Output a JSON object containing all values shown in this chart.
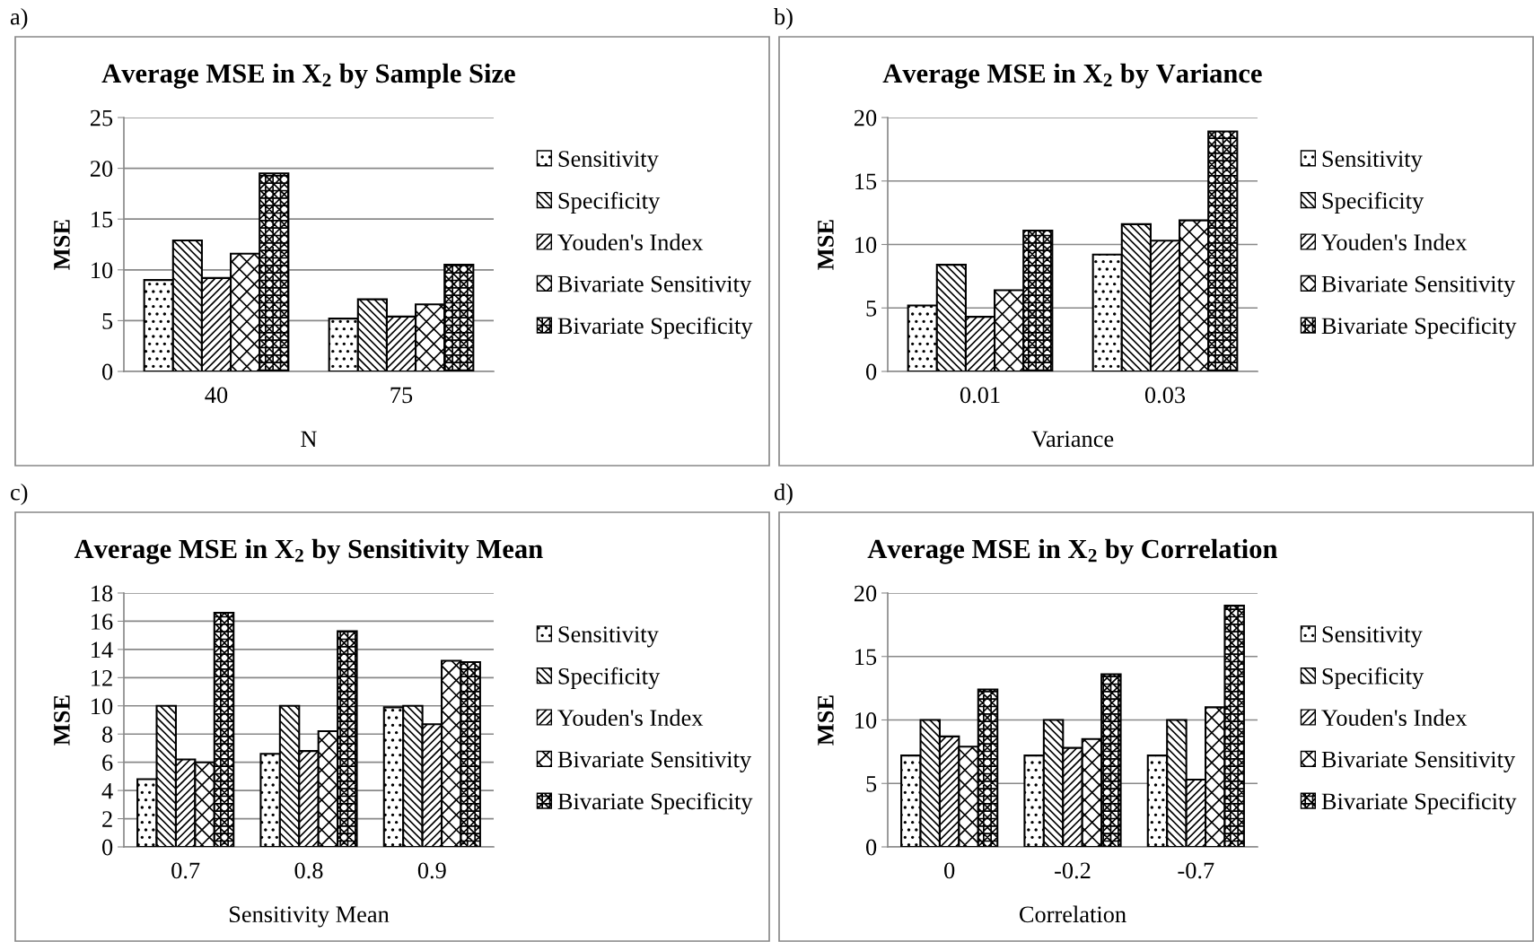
{
  "chart_data": [
    {
      "type": "bar",
      "title": "Average MSE in X$_{2}$ by Sample Size",
      "xlabel": "N",
      "ylabel": "MSE",
      "annotations": [
        "a)"
      ],
      "categories": [
        "40",
        "75"
      ],
      "ylim": [
        0,
        25
      ],
      "yticks": [
        0,
        5,
        10,
        15,
        20,
        25
      ],
      "grid": "y",
      "legend": "right",
      "series": [
        {
          "name": "Sensitivity",
          "color": "#000000",
          "values": [
            9.0,
            5.2
          ]
        },
        {
          "name": "Specificity",
          "color": "#000000",
          "values": [
            12.9,
            7.1
          ]
        },
        {
          "name": "Youden's Index",
          "color": "#000000",
          "values": [
            9.2,
            5.4
          ]
        },
        {
          "name": "Bivariate Sensitivity",
          "color": "#000000",
          "values": [
            11.6,
            6.6
          ]
        },
        {
          "name": "Bivariate Specificity",
          "color": "#000000",
          "values": [
            19.5,
            10.5
          ]
        }
      ]
    },
    {
      "type": "bar",
      "title": "Average MSE in X$_{2}$ by Variance",
      "xlabel": "Variance",
      "ylabel": "MSE",
      "annotations": [
        "b)"
      ],
      "categories": [
        "0.01",
        "0.03"
      ],
      "ylim": [
        0,
        20
      ],
      "yticks": [
        0,
        5,
        10,
        15,
        20
      ],
      "grid": "y",
      "legend": "right",
      "series": [
        {
          "name": "Sensitivity",
          "color": "#000000",
          "values": [
            5.2,
            9.2
          ]
        },
        {
          "name": "Specificity",
          "color": "#000000",
          "values": [
            8.4,
            11.6
          ]
        },
        {
          "name": "Youden's Index",
          "color": "#000000",
          "values": [
            4.3,
            10.3
          ]
        },
        {
          "name": "Bivariate Sensitivity",
          "color": "#000000",
          "values": [
            6.4,
            11.9
          ]
        },
        {
          "name": "Bivariate Specificity",
          "color": "#000000",
          "values": [
            11.1,
            18.9
          ]
        }
      ]
    },
    {
      "type": "bar",
      "title": "Average MSE in X$_{2}$ by Sensitivity Mean",
      "xlabel": "Sensitivity Mean",
      "ylabel": "MSE",
      "annotations": [
        "c)"
      ],
      "categories": [
        "0.7",
        "0.8",
        "0.9"
      ],
      "ylim": [
        0,
        18
      ],
      "yticks": [
        0,
        2,
        4,
        6,
        8,
        10,
        12,
        14,
        16,
        18
      ],
      "grid": "y",
      "legend": "right",
      "series": [
        {
          "name": "Sensitivity",
          "color": "#000000",
          "values": [
            4.8,
            6.6,
            9.9
          ]
        },
        {
          "name": "Specificity",
          "color": "#000000",
          "values": [
            10.0,
            10.0,
            10.0
          ]
        },
        {
          "name": "Youden's Index",
          "color": "#000000",
          "values": [
            6.2,
            6.8,
            8.7
          ]
        },
        {
          "name": "Bivariate Sensitivity",
          "color": "#000000",
          "values": [
            6.0,
            8.2,
            13.2
          ]
        },
        {
          "name": "Bivariate Specificity",
          "color": "#000000",
          "values": [
            16.6,
            15.3,
            13.1
          ]
        }
      ]
    },
    {
      "type": "bar",
      "title": "Average MSE in X$_{2}$ by Correlation",
      "xlabel": "Correlation",
      "ylabel": "MSE",
      "annotations": [
        "d)"
      ],
      "categories": [
        "0",
        "-0.2",
        "-0.7"
      ],
      "ylim": [
        0,
        20
      ],
      "yticks": [
        0,
        5,
        10,
        15,
        20
      ],
      "grid": "y",
      "legend": "right",
      "series": [
        {
          "name": "Sensitivity",
          "color": "#000000",
          "values": [
            7.2,
            7.2,
            7.2
          ]
        },
        {
          "name": "Specificity",
          "color": "#000000",
          "values": [
            10.0,
            10.0,
            10.0
          ]
        },
        {
          "name": "Youden's Index",
          "color": "#000000",
          "values": [
            8.7,
            7.8,
            5.3
          ]
        },
        {
          "name": "Bivariate Sensitivity",
          "color": "#000000",
          "values": [
            7.9,
            8.5,
            11.0
          ]
        },
        {
          "name": "Bivariate Specificity",
          "color": "#000000",
          "values": [
            12.4,
            13.6,
            19.0
          ]
        }
      ]
    }
  ]
}
